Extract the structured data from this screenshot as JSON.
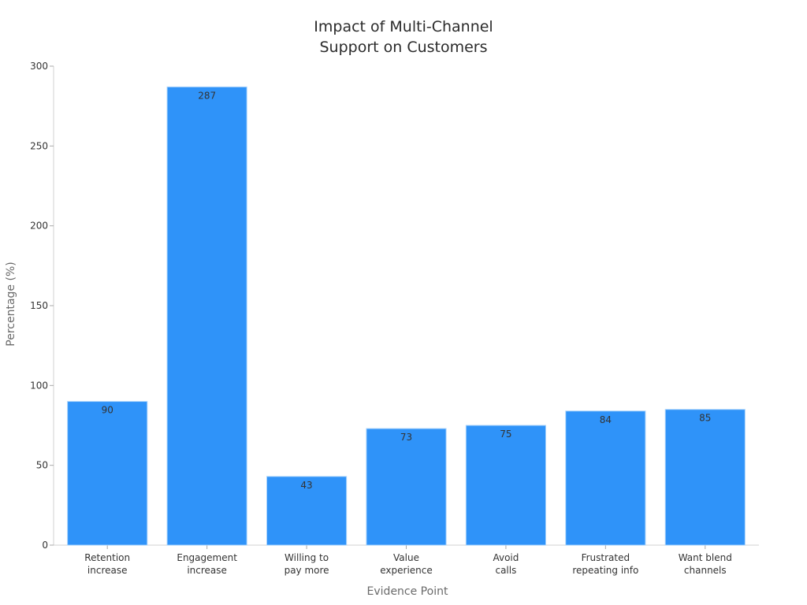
{
  "chart_data": {
    "type": "bar",
    "title": [
      "Impact of Multi-Channel",
      "Support on Customers"
    ],
    "xlabel": "Evidence Point",
    "ylabel": "Percentage (%)",
    "ylim": [
      0,
      300
    ],
    "yticks": [
      0,
      50,
      100,
      150,
      200,
      250,
      300
    ],
    "categories": [
      [
        "Retention",
        "increase"
      ],
      [
        "Engagement",
        "increase"
      ],
      [
        "Willing to",
        "pay more"
      ],
      [
        "Value",
        "experience"
      ],
      [
        "Avoid",
        "calls"
      ],
      [
        "Frustrated",
        "repeating info"
      ],
      [
        "Want blend",
        "channels"
      ]
    ],
    "values": [
      90,
      287,
      43,
      73,
      75,
      84,
      85
    ],
    "bar_color": "#2f93f9",
    "bar_edge_color": "#a9d3fb",
    "grid": false
  }
}
